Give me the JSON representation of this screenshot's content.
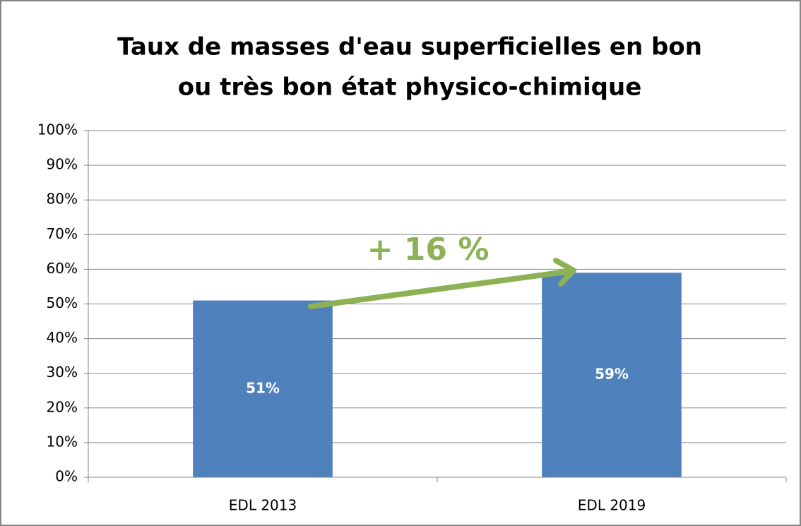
{
  "chart_data": {
    "type": "bar",
    "title": [
      "Taux de masses d'eau superficielles en bon",
      "ou très bon état physico-chimique"
    ],
    "categories": [
      "EDL 2013",
      "EDL 2019"
    ],
    "values": [
      51,
      59
    ],
    "value_labels": [
      "51%",
      "59%"
    ],
    "color": "#4f81bd",
    "annotation": "+ 16 %",
    "annotation_color": "#8db255",
    "ylim": [
      0,
      100
    ],
    "yticks": [
      {
        "value": 0,
        "label": "0%"
      },
      {
        "value": 10,
        "label": "10%"
      },
      {
        "value": 20,
        "label": "20%"
      },
      {
        "value": 30,
        "label": "30%"
      },
      {
        "value": 40,
        "label": "40%"
      },
      {
        "value": 50,
        "label": "50%"
      },
      {
        "value": 60,
        "label": "60%"
      },
      {
        "value": 70,
        "label": "70%"
      },
      {
        "value": 80,
        "label": "80%"
      },
      {
        "value": 90,
        "label": "90%"
      },
      {
        "value": 100,
        "label": "100%"
      }
    ],
    "grid": true
  }
}
